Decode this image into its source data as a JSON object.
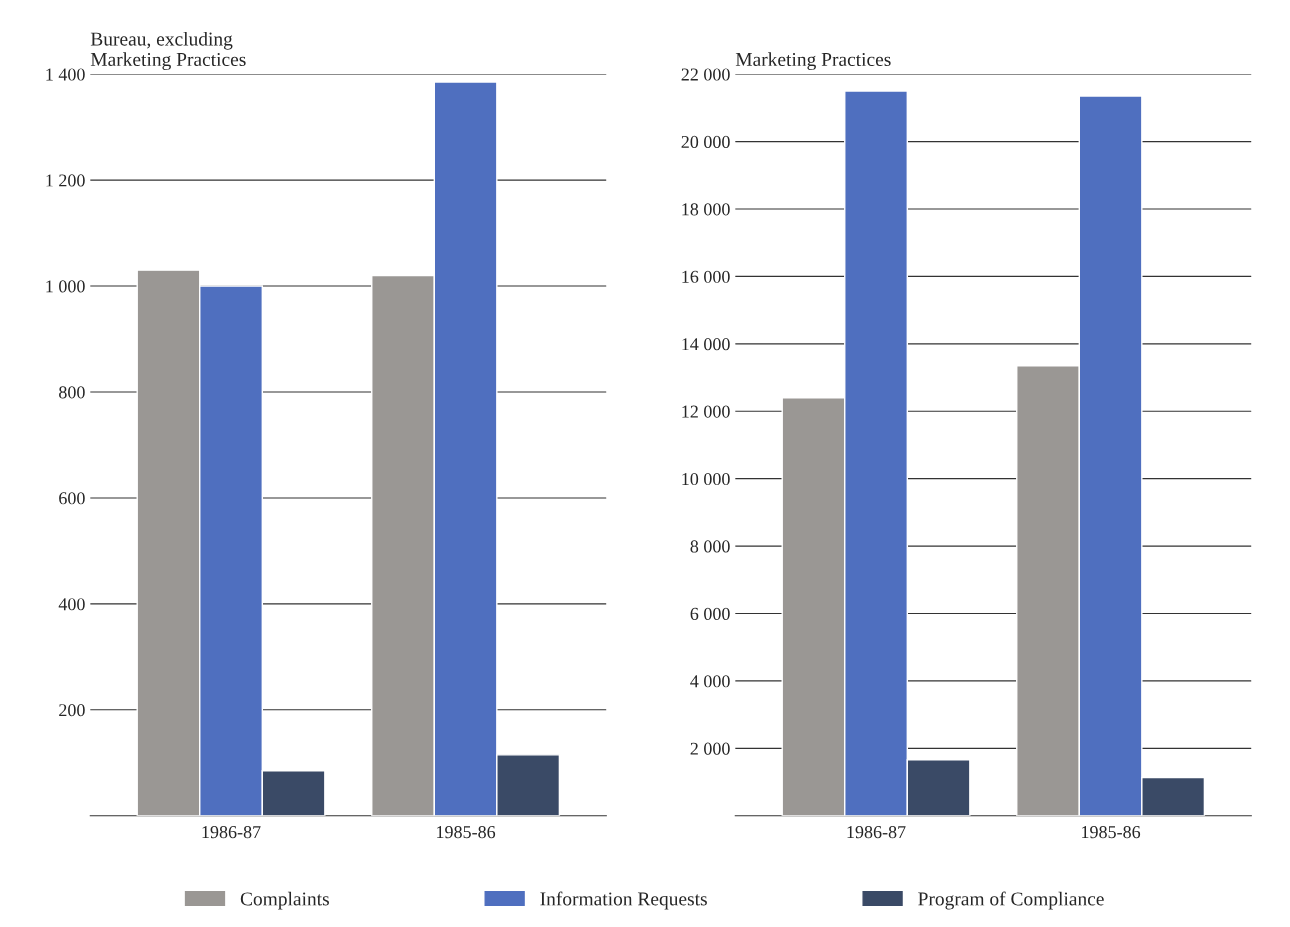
{
  "chart_data": [
    {
      "type": "bar",
      "title": "Bureau, excluding\nMarketing Practices",
      "categories": [
        "1986-87",
        "1985-86"
      ],
      "series": [
        {
          "name": "Complaints",
          "color": "#9a9794",
          "values": [
            1030,
            1020
          ]
        },
        {
          "name": "Information Requests",
          "color": "#4f6fbf",
          "values": [
            1000,
            1385
          ]
        },
        {
          "name": "Program of Compliance",
          "color": "#3a4a66",
          "values": [
            85,
            115
          ]
        }
      ],
      "ylim": [
        0,
        1400
      ],
      "yticks": [
        {
          "value": 200,
          "label": "200"
        },
        {
          "value": 400,
          "label": "400"
        },
        {
          "value": 600,
          "label": "600"
        },
        {
          "value": 800,
          "label": "800"
        },
        {
          "value": 1000,
          "label": "1 000"
        },
        {
          "value": 1200,
          "label": "1 200"
        },
        {
          "value": 1400,
          "label": "1 400"
        }
      ],
      "grid": "y",
      "legend": "bottom"
    },
    {
      "type": "bar",
      "title": "Marketing Practices",
      "categories": [
        "1986-87",
        "1985-86"
      ],
      "series": [
        {
          "color": "#9a9794",
          "values": [
            12400,
            13350
          ]
        },
        {
          "color": "#4f6fbf",
          "values": [
            21500,
            21350
          ]
        },
        {
          "color": "#3a4a66",
          "values": [
            1660,
            1130
          ]
        }
      ],
      "ylim": [
        0,
        22000
      ],
      "yticks": [
        {
          "value": 2000,
          "label": "2 000"
        },
        {
          "value": 4000,
          "label": "4 000"
        },
        {
          "value": 6000,
          "label": "6 000"
        },
        {
          "value": 8000,
          "label": "8 000"
        },
        {
          "value": 10000,
          "label": "10 000"
        },
        {
          "value": 12000,
          "label": "12 000"
        },
        {
          "value": 14000,
          "label": "14 000"
        },
        {
          "value": 16000,
          "label": "16 000"
        },
        {
          "value": 18000,
          "label": "18 000"
        },
        {
          "value": 20000,
          "label": "20 000"
        },
        {
          "value": 22000,
          "label": "22 000"
        }
      ],
      "grid": "y",
      "legend": false
    }
  ]
}
